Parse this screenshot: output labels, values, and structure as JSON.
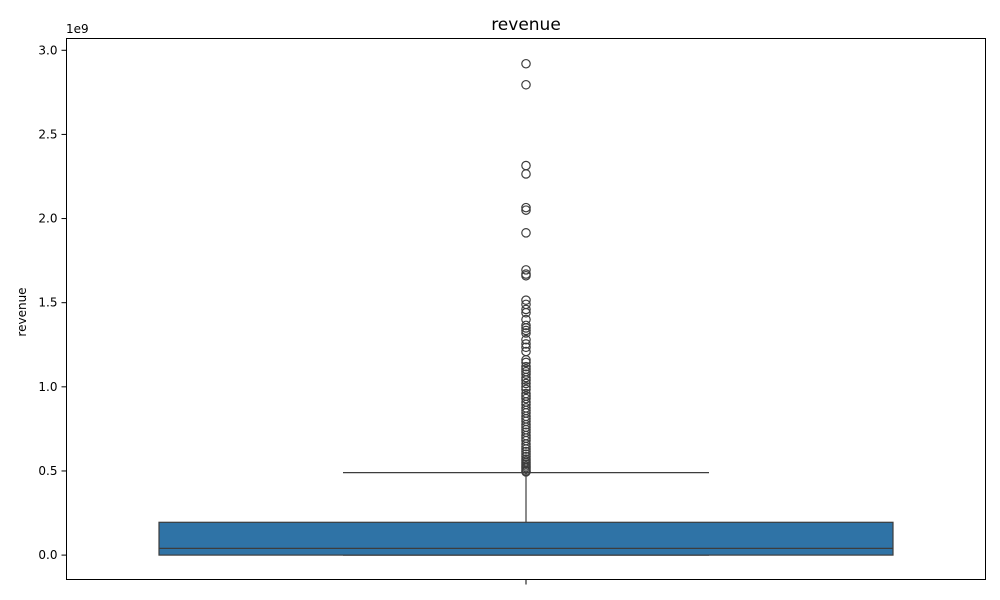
{
  "chart_data": {
    "type": "box",
    "title": "revenue",
    "xlabel": "",
    "ylabel": "revenue",
    "y_scale_offset_text": "1e9",
    "ylim": [
      -0.145,
      3.07
    ],
    "yticks": [
      0.0,
      0.5,
      1.0,
      1.5,
      2.0,
      2.5,
      3.0
    ],
    "ytick_labels": [
      "0.0",
      "0.5",
      "1.0",
      "1.5",
      "2.0",
      "2.5",
      "3.0"
    ],
    "grid": false,
    "box": {
      "whisker_low": 0.0,
      "q1": 0.0,
      "median": 0.04,
      "q3": 0.195,
      "whisker_high": 0.49,
      "color": "#2f73a6",
      "edge_color": "#3d3d3d"
    },
    "outliers": [
      2.92,
      2.795,
      2.315,
      2.265,
      2.065,
      2.05,
      1.915,
      1.695,
      1.67,
      1.66,
      1.515,
      1.49,
      1.46,
      1.44,
      1.4,
      1.365,
      1.35,
      1.335,
      1.32,
      1.28,
      1.255,
      1.235,
      1.21,
      1.16,
      1.145,
      1.12,
      1.105,
      1.09,
      1.075,
      1.055,
      1.04,
      1.02,
      1.0,
      0.985,
      0.96,
      0.945,
      0.93,
      0.91,
      0.895,
      0.875,
      0.86,
      0.845,
      0.825,
      0.81,
      0.795,
      0.775,
      0.76,
      0.745,
      0.73,
      0.71,
      0.695,
      0.68,
      0.66,
      0.645,
      0.63,
      0.615,
      0.6,
      0.585,
      0.57,
      0.56,
      0.55,
      0.54,
      0.53,
      0.52,
      0.51,
      0.5,
      0.495
    ]
  }
}
